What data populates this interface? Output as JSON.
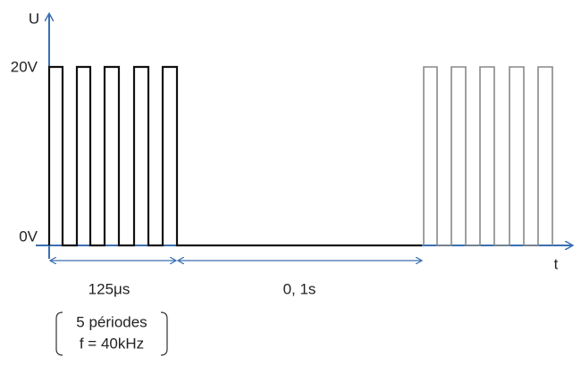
{
  "axes": {
    "y_label": "U",
    "x_label": "t",
    "high_level": "20V",
    "low_level": "0V"
  },
  "annotations": {
    "burst_duration": "125μs",
    "pause_duration": "0, 1s",
    "burst_note": [
      "5 périodes",
      "f = 40kHz"
    ]
  }
}
